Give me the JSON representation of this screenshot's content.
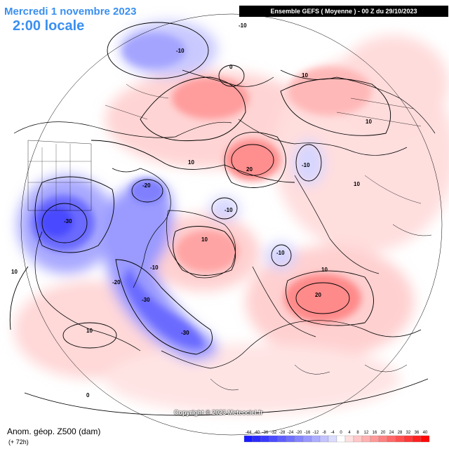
{
  "header": {
    "date": "Mercredi 1 novembre 2023",
    "time": "2:00 locale",
    "model": "Ensemble GEFS  ( Moyenne )  -  00 Z du 29/10/2023"
  },
  "footer": {
    "variable": "Anom. géop. Z500 (dam)",
    "lead": "(+ 72h)",
    "copyright": "Copyright © 2023 Meteociel.fr"
  },
  "colorscale": {
    "labels": [
      "-44",
      "-40",
      "-36",
      "-32",
      "-28",
      "-24",
      "-20",
      "-16",
      "-12",
      "-8",
      "-4",
      "0",
      "4",
      "8",
      "12",
      "16",
      "20",
      "24",
      "28",
      "32",
      "36",
      "40"
    ],
    "colors": [
      "#1a1aff",
      "#2a2aff",
      "#3a3aff",
      "#4c4cff",
      "#5e5eff",
      "#7070ff",
      "#8484ff",
      "#9898ff",
      "#adadff",
      "#c3c3ff",
      "#dcdcff",
      "#ffffff",
      "#ffe0e0",
      "#ffc8c8",
      "#ffb0b0",
      "#ff9898",
      "#ff8080",
      "#ff6868",
      "#ff5050",
      "#ff3838",
      "#ff2020",
      "#ff0808"
    ]
  },
  "contour_labels": [
    "-10",
    "-10",
    "0",
    "10",
    "10",
    "10",
    "-10",
    "20",
    "10",
    "-20",
    "-10",
    "-30",
    "10",
    "-10",
    "-10",
    "-20",
    "-30",
    "-30",
    "10",
    "20",
    "10",
    "10",
    "0"
  ]
}
